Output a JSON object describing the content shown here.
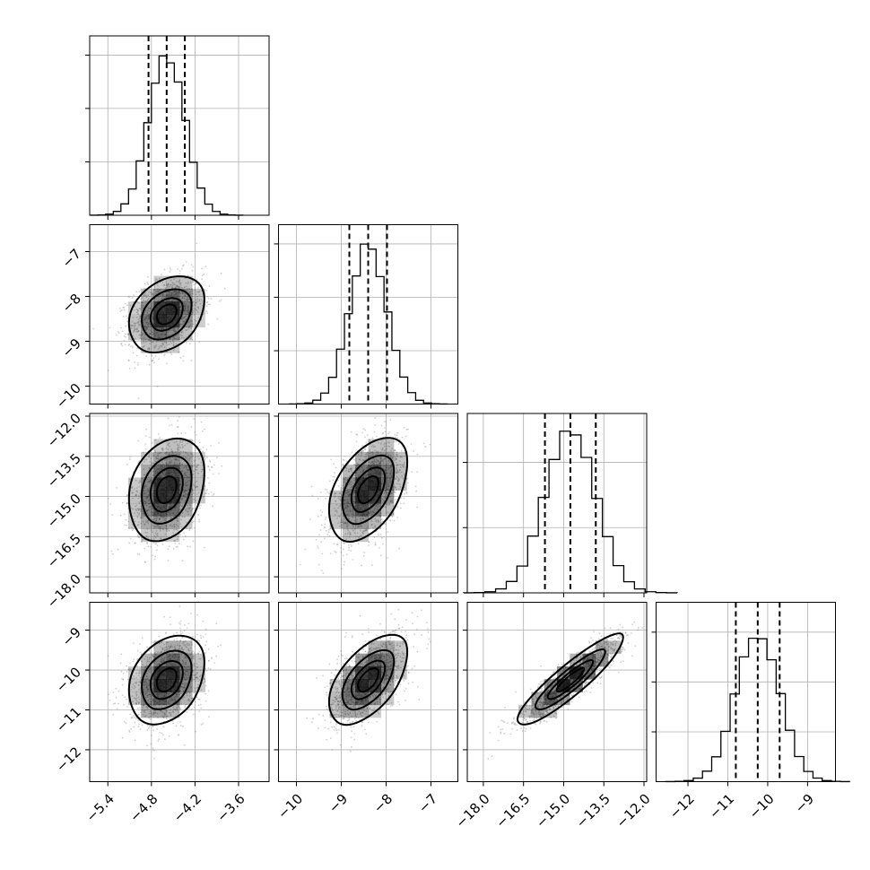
{
  "chart_data": {
    "type": "corner",
    "parameters": [
      {
        "mean": -4.59,
        "sd": 0.25,
        "q16": -4.84,
        "q50": -4.59,
        "q84": -4.34,
        "range": [
          -5.65,
          -3.18
        ],
        "ticks": [
          -5.4,
          -4.8,
          -4.2,
          -3.6
        ],
        "tick_labels": [
          "−5.4",
          "−4.8",
          "−4.2",
          "−3.6"
        ],
        "hist_ymax": 1.12,
        "hist_gridlines": [
          0.333,
          0.667,
          1.0
        ]
      },
      {
        "mean": -8.4,
        "sd": 0.42,
        "q16": -8.82,
        "q50": -8.4,
        "q84": -7.98,
        "range": [
          -10.4,
          -6.4
        ],
        "ticks": [
          -10,
          -9,
          -8,
          -7
        ],
        "tick_labels": [
          "−10",
          "−9",
          "−8",
          "−7"
        ],
        "hist_ymax": 1.12,
        "hist_gridlines": [
          0.333,
          0.667,
          1.0
        ]
      },
      {
        "mean": -14.75,
        "sd": 0.95,
        "q16": -15.7,
        "q50": -14.75,
        "q84": -13.8,
        "range": [
          -18.6,
          -11.9
        ],
        "ticks": [
          -18.0,
          -16.5,
          -15.0,
          -13.5,
          -12.0
        ],
        "tick_labels": [
          "−18.0",
          "−16.5",
          "−15.0",
          "−13.5",
          "−12.0"
        ],
        "hist_ymax": 1.1,
        "hist_gridlines": [
          0.4,
          0.8
        ]
      },
      {
        "mean": -10.25,
        "sd": 0.55,
        "q16": -10.8,
        "q50": -10.25,
        "q84": -9.7,
        "range": [
          -12.8,
          -8.3
        ],
        "ticks": [
          -12,
          -11,
          -10,
          -9
        ],
        "tick_labels": [
          "−12",
          "−11",
          "−10",
          "−9"
        ],
        "hist_ymax": 1.2,
        "hist_gridlines": [
          0.333,
          0.667,
          1.0
        ]
      }
    ],
    "correlations": [
      [
        1.0,
        0.3,
        0.25,
        0.3
      ],
      [
        0.3,
        1.0,
        0.45,
        0.55
      ],
      [
        0.25,
        0.45,
        1.0,
        0.9
      ],
      [
        0.3,
        0.55,
        0.9,
        1.0
      ]
    ],
    "contour_levels_sigma": [
      0.5,
      1.0,
      1.5,
      2.0
    ],
    "quantiles": [
      0.16,
      0.5,
      0.84
    ],
    "grid": true,
    "colors": {
      "line": "#000000",
      "samples": "#777777",
      "density": "#000000",
      "grid": "#b0b0b0"
    }
  }
}
